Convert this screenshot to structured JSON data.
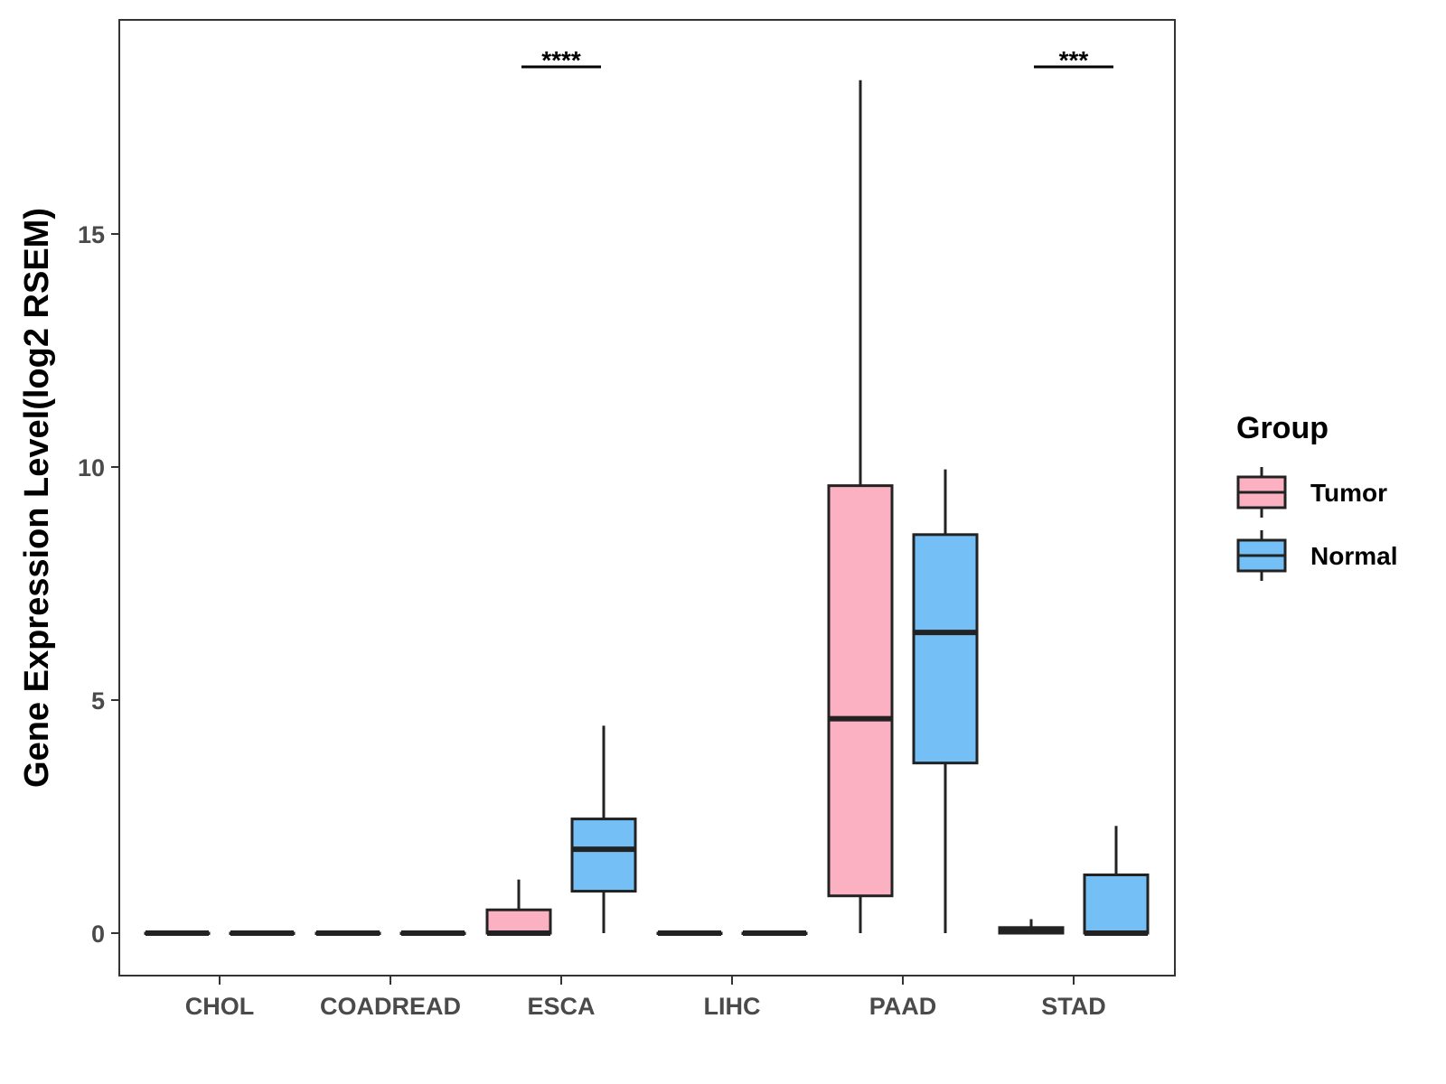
{
  "chart_data": {
    "type": "boxplot",
    "title": "",
    "xlabel": "",
    "ylabel": "Gene Expression Level(log2 RSEM)",
    "ylim": [
      -0.9,
      19.5
    ],
    "yticks": [
      0,
      5,
      10,
      15
    ],
    "ytick_labels": [
      "0",
      "5",
      "10",
      "15"
    ],
    "categories": [
      "CHOL",
      "COADREAD",
      "ESCA",
      "LIHC",
      "PAAD",
      "STAD"
    ],
    "colors": {
      "Tumor": "#fbb1c1",
      "Normal": "#74bff6",
      "outline": "#222222"
    },
    "legend": {
      "title": "Group",
      "entries": [
        "Tumor",
        "Normal"
      ],
      "position": "right"
    },
    "series": [
      {
        "name": "Tumor",
        "boxes": [
          {
            "category": "CHOL",
            "min": 0,
            "q1": 0,
            "median": 0,
            "q3": 0,
            "max": 0
          },
          {
            "category": "COADREAD",
            "min": 0,
            "q1": 0,
            "median": 0,
            "q3": 0,
            "max": 0
          },
          {
            "category": "ESCA",
            "min": 0,
            "q1": 0,
            "median": 0,
            "q3": 0.5,
            "max": 1.15
          },
          {
            "category": "LIHC",
            "min": 0,
            "q1": 0,
            "median": 0,
            "q3": 0,
            "max": 0
          },
          {
            "category": "PAAD",
            "min": 0,
            "q1": 0.8,
            "median": 4.6,
            "q3": 9.6,
            "max": 18.3
          },
          {
            "category": "STAD",
            "min": 0,
            "q1": 0,
            "median": 0.05,
            "q3": 0.12,
            "max": 0.3
          }
        ]
      },
      {
        "name": "Normal",
        "boxes": [
          {
            "category": "CHOL",
            "min": 0,
            "q1": 0,
            "median": 0,
            "q3": 0,
            "max": 0
          },
          {
            "category": "COADREAD",
            "min": 0,
            "q1": 0,
            "median": 0,
            "q3": 0,
            "max": 0
          },
          {
            "category": "ESCA",
            "min": 0,
            "q1": 0.9,
            "median": 1.8,
            "q3": 2.45,
            "max": 4.45
          },
          {
            "category": "LIHC",
            "min": 0,
            "q1": 0,
            "median": 0,
            "q3": 0,
            "max": 0
          },
          {
            "category": "PAAD",
            "min": 0,
            "q1": 3.65,
            "median": 6.45,
            "q3": 8.55,
            "max": 9.95
          },
          {
            "category": "STAD",
            "min": 0,
            "q1": 0,
            "median": 0,
            "q3": 1.25,
            "max": 2.3
          }
        ]
      }
    ],
    "annotations": [
      {
        "category": "ESCA",
        "label": "****"
      },
      {
        "category": "STAD",
        "label": "***"
      }
    ]
  }
}
